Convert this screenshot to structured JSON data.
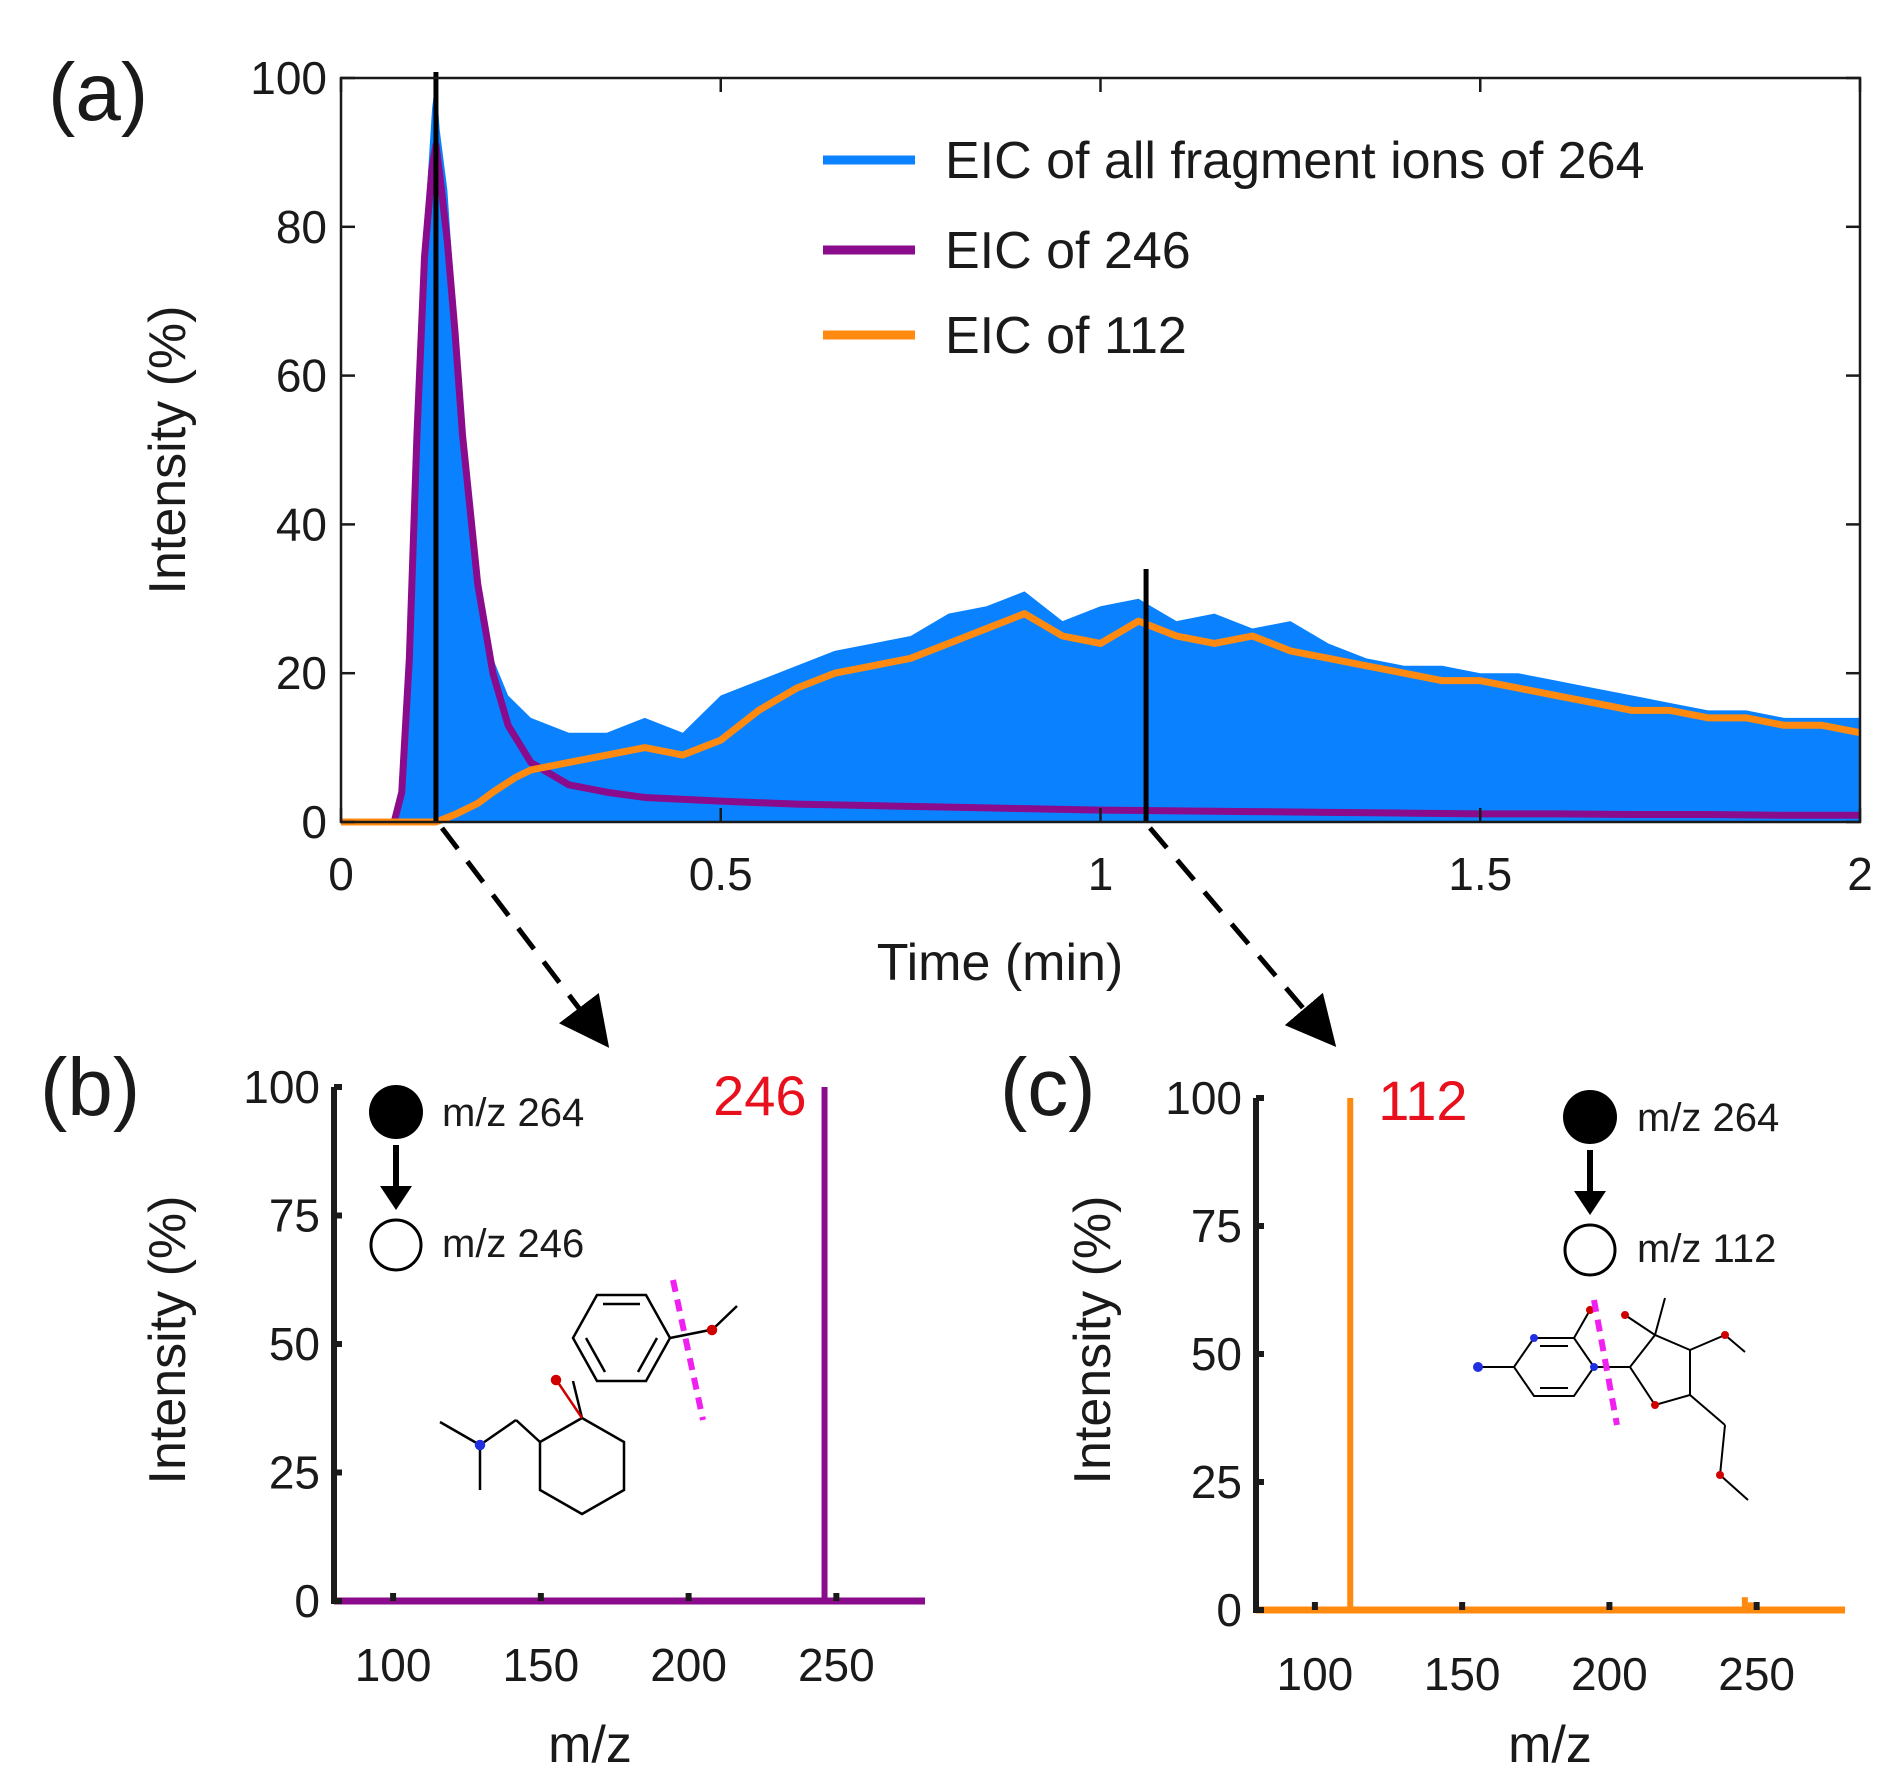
{
  "colors": {
    "blue": "#0a82ff",
    "purple": "#8a0b8c",
    "orange": "#ff8a0f",
    "axis": "#1a1a1a",
    "red": "#e8101c",
    "magenta": "#f020f0"
  },
  "chart_data": [
    {
      "id": "a",
      "panel_label": "(a)",
      "type": "line",
      "xlabel": "Time (min)",
      "ylabel": "Intensity (%)",
      "xlim": [
        0,
        2
      ],
      "ylim": [
        0,
        100
      ],
      "xticks": [
        0,
        0.5,
        1,
        1.5,
        2
      ],
      "xtick_labels": [
        "0",
        "0.5",
        "1",
        "1.5",
        "2"
      ],
      "yticks": [
        0,
        20,
        40,
        60,
        80,
        100
      ],
      "ytick_labels": [
        "0",
        "20",
        "40",
        "60",
        "80",
        "100"
      ],
      "markers": [
        0.125,
        1.06
      ],
      "legend_position": "top-right",
      "legend": [
        "EIC of all fragment ions of 264",
        "EIC of 246",
        "EIC of 112"
      ],
      "series": [
        {
          "name": "EIC of all fragment ions of 264",
          "style": "filled-area",
          "color": "#0a82ff",
          "x": [
            0,
            0.07,
            0.08,
            0.09,
            0.1,
            0.11,
            0.12,
            0.125,
            0.13,
            0.14,
            0.15,
            0.16,
            0.18,
            0.2,
            0.22,
            0.25,
            0.3,
            0.35,
            0.4,
            0.45,
            0.5,
            0.55,
            0.6,
            0.65,
            0.7,
            0.75,
            0.8,
            0.85,
            0.9,
            0.95,
            1.0,
            1.05,
            1.1,
            1.15,
            1.2,
            1.25,
            1.3,
            1.35,
            1.4,
            1.45,
            1.5,
            1.55,
            1.6,
            1.65,
            1.7,
            1.75,
            1.8,
            1.85,
            1.9,
            1.95,
            2.0
          ],
          "y": [
            0,
            0,
            5,
            25,
            55,
            80,
            96,
            100,
            93,
            85,
            70,
            52,
            34,
            22,
            17,
            14,
            12,
            12,
            14,
            12,
            17,
            19,
            21,
            23,
            24,
            25,
            28,
            29,
            31,
            27,
            29,
            30,
            27,
            28,
            26,
            27,
            24,
            22,
            21,
            21,
            20,
            20,
            19,
            18,
            17,
            16,
            15,
            15,
            14,
            14,
            14
          ]
        },
        {
          "name": "EIC of 246",
          "style": "line",
          "color": "#8a0b8c",
          "x": [
            0,
            0.07,
            0.08,
            0.09,
            0.1,
            0.11,
            0.12,
            0.125,
            0.13,
            0.14,
            0.15,
            0.16,
            0.18,
            0.2,
            0.22,
            0.25,
            0.3,
            0.35,
            0.4,
            0.5,
            0.6,
            0.7,
            0.8,
            0.9,
            1.0,
            1.1,
            1.2,
            1.3,
            1.4,
            1.5,
            1.6,
            1.7,
            1.8,
            1.9,
            2.0
          ],
          "y": [
            0,
            0,
            4,
            22,
            52,
            76,
            88,
            91,
            87,
            78,
            66,
            52,
            32,
            20,
            13,
            8,
            5,
            4,
            3.3,
            2.8,
            2.4,
            2.2,
            2,
            1.8,
            1.6,
            1.5,
            1.4,
            1.3,
            1.2,
            1.1,
            1.1,
            1,
            1,
            0.9,
            0.9
          ]
        },
        {
          "name": "EIC of 112",
          "style": "line",
          "color": "#ff8a0f",
          "x": [
            0,
            0.125,
            0.15,
            0.18,
            0.2,
            0.23,
            0.25,
            0.3,
            0.35,
            0.4,
            0.45,
            0.5,
            0.55,
            0.6,
            0.65,
            0.7,
            0.75,
            0.8,
            0.85,
            0.9,
            0.95,
            1.0,
            1.05,
            1.1,
            1.15,
            1.2,
            1.25,
            1.3,
            1.35,
            1.4,
            1.45,
            1.5,
            1.55,
            1.6,
            1.65,
            1.7,
            1.75,
            1.8,
            1.85,
            1.9,
            1.95,
            2.0
          ],
          "y": [
            0,
            0,
            1,
            2.5,
            4,
            6,
            7,
            8,
            9,
            10,
            9,
            11,
            15,
            18,
            20,
            21,
            22,
            24,
            26,
            28,
            25,
            24,
            27,
            25,
            24,
            25,
            23,
            22,
            21,
            20,
            19,
            19,
            18,
            17,
            16,
            15,
            15,
            14,
            14,
            13,
            13,
            12
          ]
        }
      ]
    },
    {
      "id": "b",
      "panel_label": "(b)",
      "type": "bar",
      "xlabel": "m/z",
      "ylabel": "Intensity (%)",
      "xlim": [
        80,
        280
      ],
      "ylim": [
        0,
        100
      ],
      "xticks": [
        100,
        150,
        200,
        250
      ],
      "xtick_labels": [
        "100",
        "150",
        "200",
        "250"
      ],
      "yticks": [
        0,
        25,
        50,
        75,
        100
      ],
      "ytick_labels": [
        "0",
        "25",
        "50",
        "75",
        "100"
      ],
      "series": [
        {
          "name": "fragment spectrum",
          "color": "#8a0b8c",
          "x": [
            246
          ],
          "y": [
            100
          ]
        }
      ],
      "peak_label": "246",
      "peak_label_x": 246,
      "precursor_ion": "m/z 264",
      "product_ion": "m/z 246"
    },
    {
      "id": "c",
      "panel_label": "(c)",
      "type": "bar",
      "xlabel": "m/z",
      "ylabel": "Intensity (%)",
      "xlim": [
        80,
        280
      ],
      "ylim": [
        0,
        100
      ],
      "xticks": [
        100,
        150,
        200,
        250
      ],
      "xtick_labels": [
        "100",
        "150",
        "200",
        "250"
      ],
      "yticks": [
        0,
        25,
        50,
        75,
        100
      ],
      "ytick_labels": [
        "0",
        "25",
        "50",
        "75",
        "100"
      ],
      "series": [
        {
          "name": "fragment spectrum",
          "color": "#ff8a0f",
          "x": [
            94,
            112,
            246,
            248
          ],
          "y": [
            0.5,
            100,
            2.5,
            1.5
          ]
        }
      ],
      "peak_label": "112",
      "peak_label_x": 112,
      "precursor_ion": "m/z 264",
      "product_ion": "m/z 112"
    }
  ]
}
